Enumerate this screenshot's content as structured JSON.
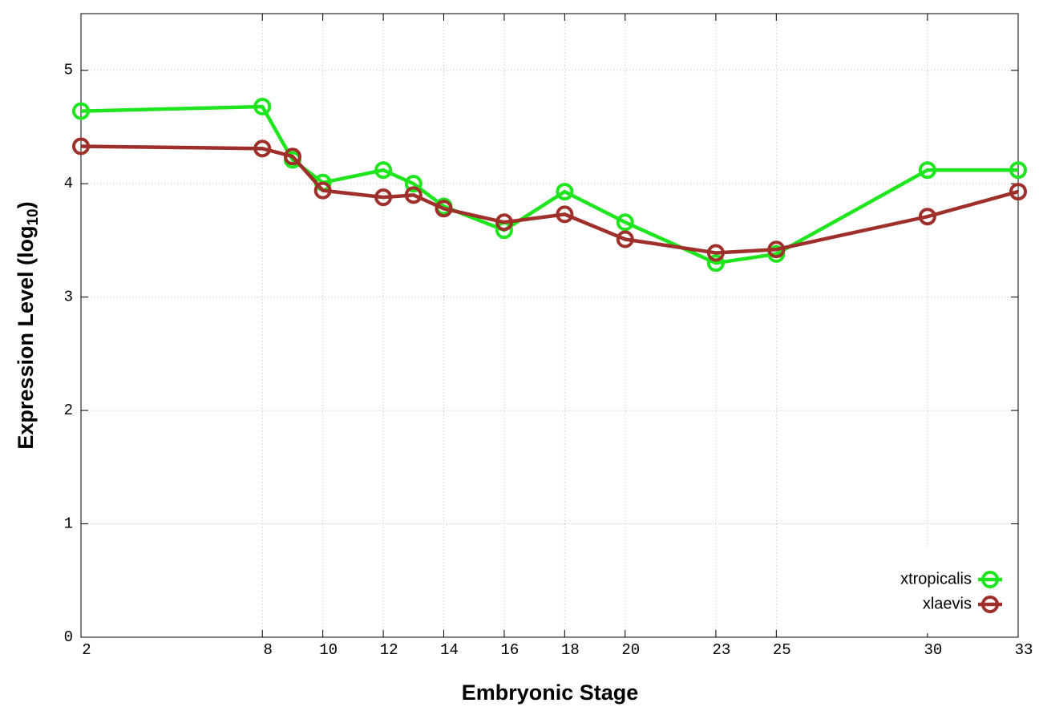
{
  "chart_data": {
    "type": "line",
    "xlabel": "Embryonic Stage",
    "ylabel": [
      "Expression Level (log",
      "10",
      ")"
    ],
    "x": [
      2,
      8,
      9,
      10,
      12,
      13,
      14,
      16,
      18,
      20,
      23,
      25,
      30,
      33
    ],
    "series": [
      {
        "name": "xtropicalis",
        "color": "#1ee51e",
        "values": [
          4.64,
          4.68,
          4.21,
          4.01,
          4.12,
          4.0,
          3.8,
          3.59,
          3.93,
          3.66,
          3.3,
          3.38,
          4.12,
          4.12
        ]
      },
      {
        "name": "xlaevis",
        "color": "#9e2f2a",
        "values": [
          4.33,
          4.31,
          4.24,
          3.94,
          3.88,
          3.9,
          3.78,
          3.66,
          3.73,
          3.51,
          3.39,
          3.42,
          3.71,
          3.93
        ]
      }
    ],
    "xlim": [
      2,
      33
    ],
    "xticks": [
      2,
      8,
      10,
      12,
      14,
      16,
      18,
      20,
      23,
      25,
      30,
      33
    ],
    "ylim": [
      0,
      5.5
    ],
    "yticks": [
      0,
      1,
      2,
      3,
      4,
      5
    ],
    "grid": true,
    "legend": "bottom right"
  }
}
